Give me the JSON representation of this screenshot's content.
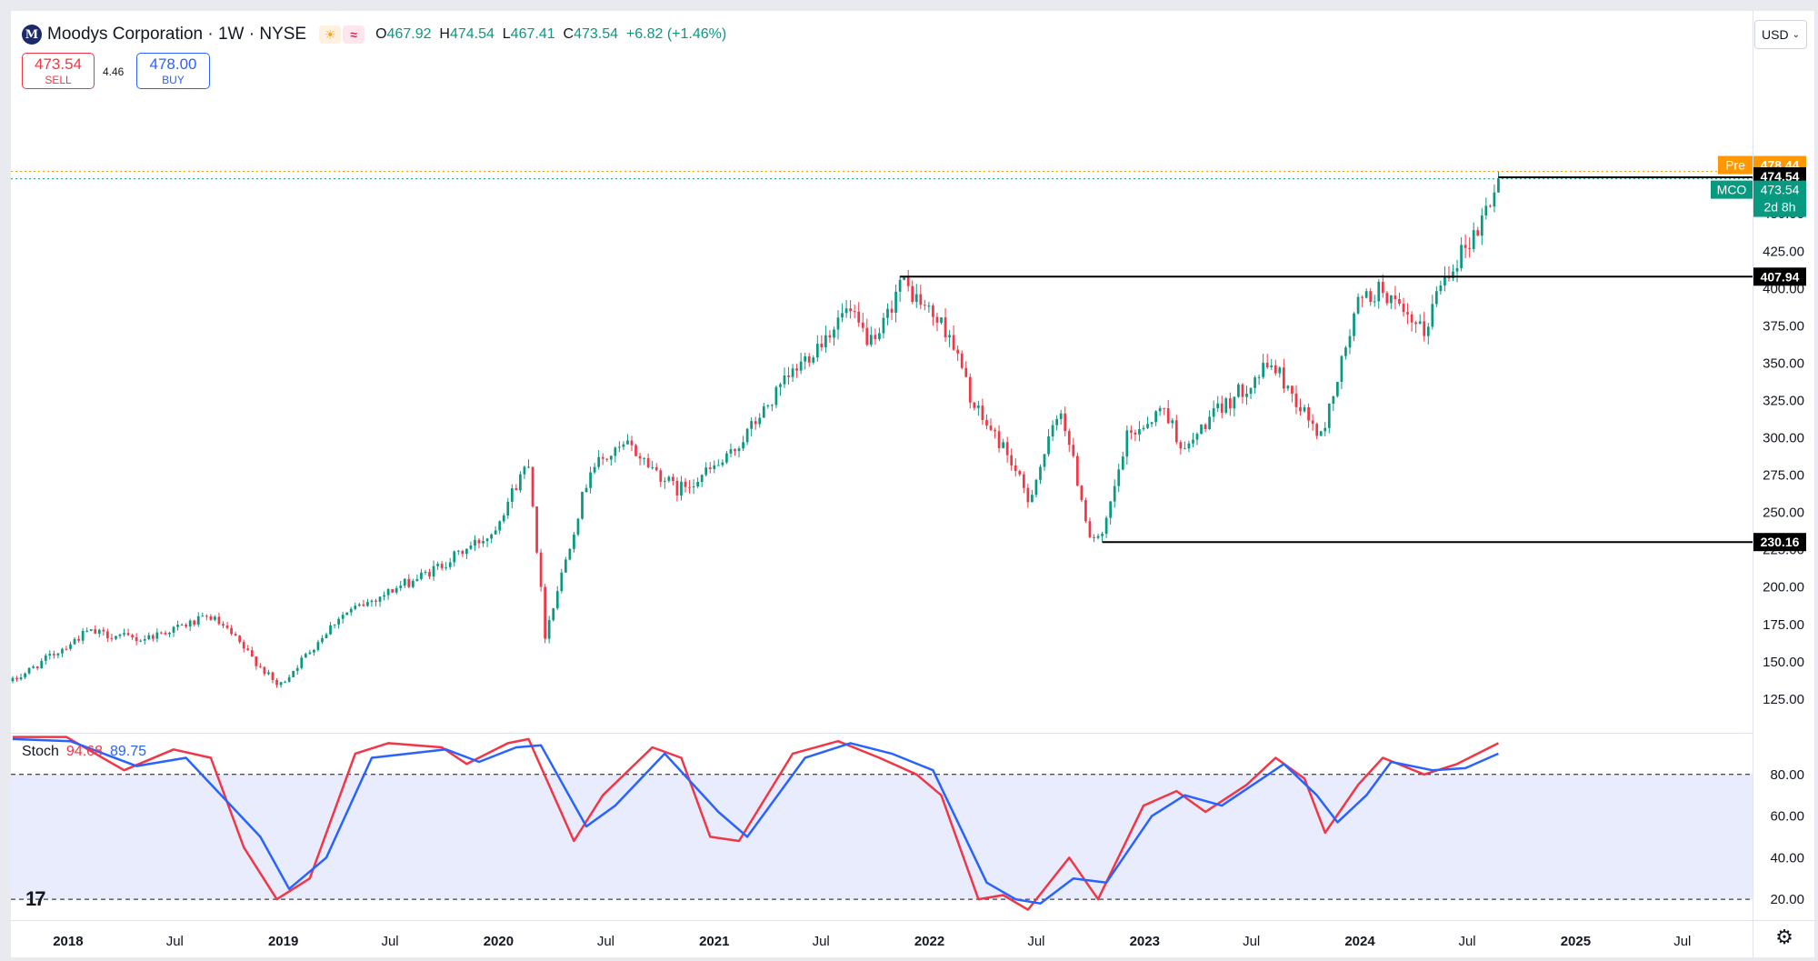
{
  "header": {
    "logo_letter": "M",
    "title": "Moodys Corporation · 1W · NYSE",
    "sun_icon": "☀",
    "wave_icon": "≈",
    "open_label": "O",
    "open": "467.92",
    "high_label": "H",
    "high": "474.54",
    "low_label": "L",
    "low": "467.41",
    "close_label": "C",
    "close": "473.54",
    "change": "+6.82 (+1.46%)"
  },
  "trade": {
    "sell_price": "473.54",
    "sell_label": "SELL",
    "spread": "4.46",
    "buy_price": "478.00",
    "buy_label": "BUY"
  },
  "currency": {
    "label": "USD"
  },
  "stoch_legend": {
    "name": "Stoch",
    "k": "94.68",
    "d": "89.75"
  },
  "colors": {
    "up": "#089981",
    "down": "#f23645",
    "k_line": "#f23645",
    "d_line": "#2962ff",
    "band_fill": "#e8ecfd",
    "pre_tag": "#ff9800"
  },
  "chart_data": [
    {
      "type": "candlestick",
      "symbol": "MCO",
      "interval": "1W",
      "y_ticks": [
        125,
        150,
        175,
        200,
        225,
        250,
        275,
        300,
        325,
        350,
        375,
        400,
        425,
        450
      ],
      "ylim": [
        103,
        508
      ],
      "x_ticks": [
        {
          "date": "2018-01-01",
          "label": "2018"
        },
        {
          "date": "2018-07-01",
          "label": "Jul"
        },
        {
          "date": "2019-01-01",
          "label": "2019"
        },
        {
          "date": "2019-07-01",
          "label": "Jul"
        },
        {
          "date": "2020-01-01",
          "label": "2020"
        },
        {
          "date": "2020-07-01",
          "label": "Jul"
        },
        {
          "date": "2021-01-01",
          "label": "2021"
        },
        {
          "date": "2021-07-01",
          "label": "Jul"
        },
        {
          "date": "2022-01-01",
          "label": "2022"
        },
        {
          "date": "2022-07-01",
          "label": "Jul"
        },
        {
          "date": "2023-01-01",
          "label": "2023"
        },
        {
          "date": "2023-07-01",
          "label": "Jul"
        },
        {
          "date": "2024-01-01",
          "label": "2024"
        },
        {
          "date": "2024-07-01",
          "label": "Jul"
        },
        {
          "date": "2025-01-01",
          "label": "2025"
        },
        {
          "date": "2025-07-01",
          "label": "Jul"
        }
      ],
      "xlim": [
        "2017-09-26",
        "2025-10-28"
      ],
      "price_path": [
        [
          "2017-09-29",
          137
        ],
        [
          "2018-02-02",
          170
        ],
        [
          "2018-05-04",
          165
        ],
        [
          "2018-08-31",
          180
        ],
        [
          "2018-10-05",
          168
        ],
        [
          "2018-12-24",
          133
        ],
        [
          "2019-04-05",
          180
        ],
        [
          "2019-07-05",
          198
        ],
        [
          "2019-09-06",
          210
        ],
        [
          "2019-12-20",
          236
        ],
        [
          "2020-02-21",
          285
        ],
        [
          "2020-03-20",
          168
        ],
        [
          "2020-06-05",
          280
        ],
        [
          "2020-08-07",
          295
        ],
        [
          "2020-10-30",
          265
        ],
        [
          "2021-01-22",
          285
        ],
        [
          "2021-05-07",
          340
        ],
        [
          "2021-08-13",
          385
        ],
        [
          "2021-10-01",
          360
        ],
        [
          "2021-11-12",
          405
        ],
        [
          "2022-02-04",
          370
        ],
        [
          "2022-03-18",
          320
        ],
        [
          "2022-05-13",
          290
        ],
        [
          "2022-06-17",
          258
        ],
        [
          "2022-08-12",
          320
        ],
        [
          "2022-09-30",
          235
        ],
        [
          "2022-10-21",
          232
        ],
        [
          "2022-12-02",
          300
        ],
        [
          "2023-02-03",
          320
        ],
        [
          "2023-03-10",
          290
        ],
        [
          "2023-04-14",
          310
        ],
        [
          "2023-08-04",
          350
        ],
        [
          "2023-10-27",
          300
        ],
        [
          "2023-12-29",
          390
        ],
        [
          "2024-02-09",
          400
        ],
        [
          "2024-03-15",
          380
        ],
        [
          "2024-04-19",
          370
        ],
        [
          "2024-05-17",
          405
        ],
        [
          "2024-07-19",
          440
        ],
        [
          "2024-08-23",
          473
        ]
      ],
      "last_price": 473.54,
      "axis_tags": [
        {
          "label": "Pre",
          "value": "478.44"
        },
        {
          "label": "",
          "value": "474.54"
        },
        {
          "label": "MCO",
          "value": "473.54",
          "sub": "2d 8h"
        },
        {
          "label": "",
          "value": "407.94"
        },
        {
          "label": "",
          "value": "230.16"
        }
      ],
      "horizontal_lines": [
        {
          "y": 474.54,
          "from": "2024-08-23"
        },
        {
          "y": 407.94,
          "from": "2021-11-12"
        },
        {
          "y": 230.16,
          "from": "2022-10-21"
        }
      ]
    },
    {
      "type": "line",
      "indicator": "Stoch",
      "ylim": [
        10,
        100
      ],
      "y_ticks": [
        20,
        40,
        60,
        80
      ],
      "bands": [
        20,
        80
      ],
      "series": [
        {
          "name": "%K",
          "points": [
            [
              "2017-09-29",
              98
            ],
            [
              "2017-12-29",
              98
            ],
            [
              "2018-04-06",
              82
            ],
            [
              "2018-06-29",
              92
            ],
            [
              "2018-08-31",
              88
            ],
            [
              "2018-10-26",
              45
            ],
            [
              "2018-12-21",
              20
            ],
            [
              "2019-02-15",
              30
            ],
            [
              "2019-05-03",
              90
            ],
            [
              "2019-06-28",
              95
            ],
            [
              "2019-09-27",
              93
            ],
            [
              "2019-11-08",
              85
            ],
            [
              "2020-01-17",
              95
            ],
            [
              "2020-02-21",
              97
            ],
            [
              "2020-05-08",
              48
            ],
            [
              "2020-06-26",
              70
            ],
            [
              "2020-09-18",
              93
            ],
            [
              "2020-11-06",
              88
            ],
            [
              "2020-12-25",
              50
            ],
            [
              "2021-02-12",
              48
            ],
            [
              "2021-05-14",
              90
            ],
            [
              "2021-07-30",
              96
            ],
            [
              "2021-10-08",
              88
            ],
            [
              "2021-12-10",
              80
            ],
            [
              "2022-01-21",
              70
            ],
            [
              "2022-03-25",
              20
            ],
            [
              "2022-05-06",
              22
            ],
            [
              "2022-06-17",
              15
            ],
            [
              "2022-08-26",
              40
            ],
            [
              "2022-10-14",
              20
            ],
            [
              "2022-12-30",
              65
            ],
            [
              "2023-02-24",
              72
            ],
            [
              "2023-04-14",
              62
            ],
            [
              "2023-06-23",
              75
            ],
            [
              "2023-08-11",
              88
            ],
            [
              "2023-09-29",
              78
            ],
            [
              "2023-11-03",
              52
            ],
            [
              "2023-12-29",
              75
            ],
            [
              "2024-02-09",
              88
            ],
            [
              "2024-04-19",
              80
            ],
            [
              "2024-06-14",
              85
            ],
            [
              "2024-08-23",
              95
            ]
          ]
        },
        {
          "name": "%D",
          "points": [
            [
              "2017-09-29",
              97
            ],
            [
              "2018-01-05",
              96
            ],
            [
              "2018-04-27",
              84
            ],
            [
              "2018-07-20",
              88
            ],
            [
              "2018-11-23",
              50
            ],
            [
              "2019-01-11",
              25
            ],
            [
              "2019-03-15",
              40
            ],
            [
              "2019-05-31",
              88
            ],
            [
              "2019-10-04",
              92
            ],
            [
              "2019-11-29",
              86
            ],
            [
              "2020-01-31",
              93
            ],
            [
              "2020-03-13",
              94
            ],
            [
              "2020-05-29",
              55
            ],
            [
              "2020-07-17",
              65
            ],
            [
              "2020-10-09",
              90
            ],
            [
              "2021-01-08",
              62
            ],
            [
              "2021-02-26",
              50
            ],
            [
              "2021-06-04",
              88
            ],
            [
              "2021-08-20",
              95
            ],
            [
              "2021-10-29",
              90
            ],
            [
              "2022-01-07",
              82
            ],
            [
              "2022-04-08",
              28
            ],
            [
              "2022-05-27",
              20
            ],
            [
              "2022-07-08",
              18
            ],
            [
              "2022-09-02",
              30
            ],
            [
              "2022-10-28",
              28
            ],
            [
              "2023-01-13",
              60
            ],
            [
              "2023-03-10",
              70
            ],
            [
              "2023-05-12",
              65
            ],
            [
              "2023-08-25",
              85
            ],
            [
              "2023-10-20",
              70
            ],
            [
              "2023-11-24",
              57
            ],
            [
              "2024-01-12",
              70
            ],
            [
              "2024-02-23",
              86
            ],
            [
              "2024-05-03",
              82
            ],
            [
              "2024-06-28",
              83
            ],
            [
              "2024-08-23",
              90
            ]
          ]
        }
      ]
    }
  ]
}
